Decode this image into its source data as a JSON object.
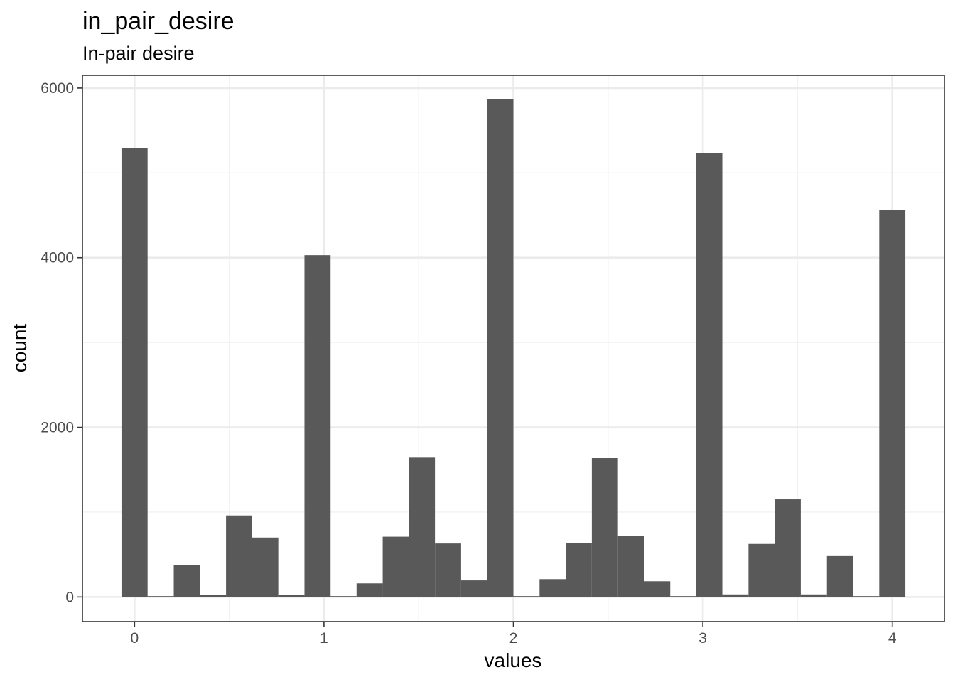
{
  "chart_data": {
    "type": "bar",
    "title": "in_pair_desire",
    "subtitle": "In-pair desire",
    "xlabel": "values",
    "ylabel": "count",
    "xlim": [
      -0.275,
      4.275
    ],
    "ylim": [
      -290,
      6150
    ],
    "x_ticks": [
      0,
      1,
      2,
      3,
      4
    ],
    "x_tick_labels": [
      "0",
      "1",
      "2",
      "3",
      "4"
    ],
    "y_ticks": [
      0,
      2000,
      4000,
      6000
    ],
    "y_tick_labels": [
      "0",
      "2000",
      "4000",
      "6000"
    ],
    "grid": true,
    "bin_width": 0.1379,
    "bins": [
      {
        "center": 0.0,
        "value": 5290
      },
      {
        "center": 0.138,
        "value": 0
      },
      {
        "center": 0.276,
        "value": 380
      },
      {
        "center": 0.414,
        "value": 25
      },
      {
        "center": 0.552,
        "value": 960
      },
      {
        "center": 0.69,
        "value": 700
      },
      {
        "center": 0.828,
        "value": 20
      },
      {
        "center": 0.966,
        "value": 4030
      },
      {
        "center": 1.103,
        "value": 0
      },
      {
        "center": 1.241,
        "value": 160
      },
      {
        "center": 1.379,
        "value": 710
      },
      {
        "center": 1.517,
        "value": 1650
      },
      {
        "center": 1.655,
        "value": 630
      },
      {
        "center": 1.793,
        "value": 195
      },
      {
        "center": 1.931,
        "value": 5870
      },
      {
        "center": 2.069,
        "value": 0
      },
      {
        "center": 2.207,
        "value": 210
      },
      {
        "center": 2.345,
        "value": 635
      },
      {
        "center": 2.483,
        "value": 1640
      },
      {
        "center": 2.621,
        "value": 715
      },
      {
        "center": 2.759,
        "value": 185
      },
      {
        "center": 2.897,
        "value": 0
      },
      {
        "center": 3.034,
        "value": 5230
      },
      {
        "center": 3.172,
        "value": 30
      },
      {
        "center": 3.31,
        "value": 625
      },
      {
        "center": 3.448,
        "value": 1150
      },
      {
        "center": 3.586,
        "value": 30
      },
      {
        "center": 3.724,
        "value": 490
      },
      {
        "center": 3.862,
        "value": 0
      },
      {
        "center": 4.0,
        "value": 4560
      }
    ],
    "colors": {
      "bar": "#595959",
      "panel_border": "#333333",
      "grid_major": "#ebebeb",
      "grid_minor": "#f2f2f2",
      "tick_text": "#4d4d4d"
    }
  }
}
